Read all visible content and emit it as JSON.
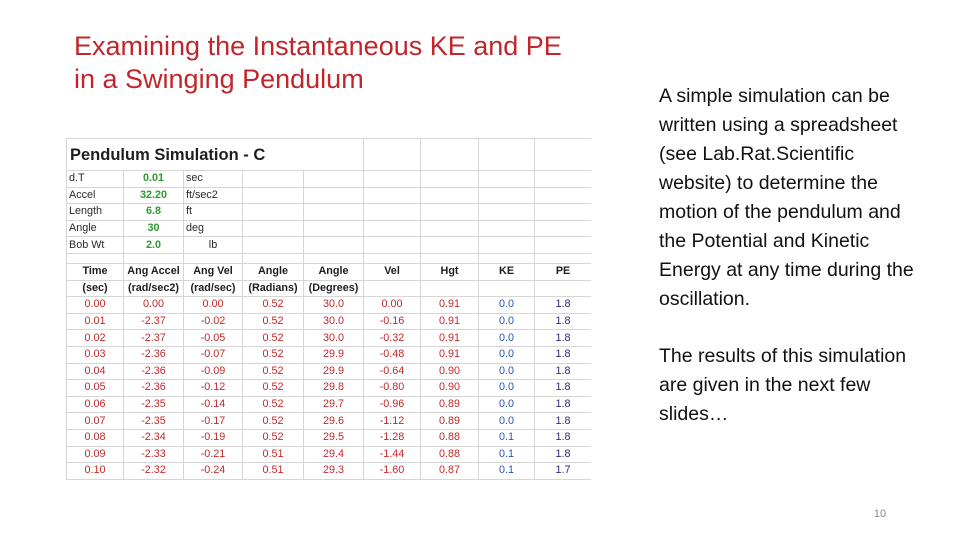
{
  "slide": {
    "title_lines": [
      "Examining the Instantaneous KE and PE",
      "in a Swinging Pendulum"
    ],
    "body_paragraphs": [
      "A simple simulation can be written using a spreadsheet (see Lab.Rat.Scientific website) to determine the motion of the pendulum and the Potential and Kinetic Energy at any time during the oscillation.",
      "The results of this simulation are given in the next few slides…"
    ],
    "page_number": "10"
  },
  "colors": {
    "title": "#c0262c",
    "param_value": "#2f9a2f",
    "data_values": "#c02a2a",
    "ke_header": "#2f4ec4",
    "pe_header": "#8a2b93"
  },
  "spreadsheet": {
    "title": "Pendulum Simulation - C",
    "parameters": [
      {
        "label": "d.T",
        "value": "0.01",
        "unit": "sec"
      },
      {
        "label": "Accel",
        "value": "32.20",
        "unit": "ft/sec2"
      },
      {
        "label": "Length",
        "value": "6.8",
        "unit": "ft"
      },
      {
        "label": "Angle",
        "value": "30",
        "unit": "deg"
      },
      {
        "label": "Bob Wt",
        "value": "2.0",
        "unit": "lb"
      }
    ],
    "headers_row1": [
      "Time",
      "Ang Accel",
      "Ang Vel",
      "Angle",
      "Angle",
      "Vel",
      "Hgt",
      "KE",
      "PE"
    ],
    "headers_row2": [
      "(sec)",
      "(rad/sec2)",
      "(rad/sec)",
      "(Radians)",
      "(Degrees)",
      "",
      "",
      "",
      ""
    ],
    "rows": [
      [
        "0.00",
        "0.00",
        "0.00",
        "0.52",
        "30.0",
        "0.00",
        "0.91",
        "0.0",
        "1.8"
      ],
      [
        "0.01",
        "-2.37",
        "-0.02",
        "0.52",
        "30.0",
        "-0.16",
        "0.91",
        "0.0",
        "1.8"
      ],
      [
        "0.02",
        "-2.37",
        "-0.05",
        "0.52",
        "30.0",
        "-0.32",
        "0.91",
        "0.0",
        "1.8"
      ],
      [
        "0.03",
        "-2.36",
        "-0.07",
        "0.52",
        "29.9",
        "-0.48",
        "0.91",
        "0.0",
        "1.8"
      ],
      [
        "0.04",
        "-2.36",
        "-0.09",
        "0.52",
        "29.9",
        "-0.64",
        "0.90",
        "0.0",
        "1.8"
      ],
      [
        "0.05",
        "-2.36",
        "-0.12",
        "0.52",
        "29.8",
        "-0.80",
        "0.90",
        "0.0",
        "1.8"
      ],
      [
        "0.06",
        "-2.35",
        "-0.14",
        "0.52",
        "29.7",
        "-0.96",
        "0.89",
        "0.0",
        "1.8"
      ],
      [
        "0.07",
        "-2.35",
        "-0.17",
        "0.52",
        "29.6",
        "-1.12",
        "0.89",
        "0.0",
        "1.8"
      ],
      [
        "0.08",
        "-2.34",
        "-0.19",
        "0.52",
        "29.5",
        "-1.28",
        "0.88",
        "0.1",
        "1.8"
      ],
      [
        "0.09",
        "-2.33",
        "-0.21",
        "0.51",
        "29.4",
        "-1.44",
        "0.88",
        "0.1",
        "1.8"
      ],
      [
        "0.10",
        "-2.32",
        "-0.24",
        "0.51",
        "29.3",
        "-1.60",
        "0.87",
        "0.1",
        "1.7"
      ]
    ]
  }
}
